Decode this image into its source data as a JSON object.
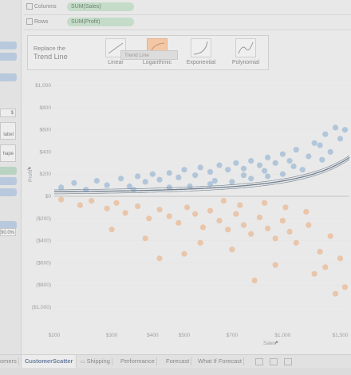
{
  "shelves": {
    "columns_label": "Columns",
    "columns_pill": "SUM(Sales)",
    "rows_label": "Rows",
    "rows_pill": "SUM(Profit)"
  },
  "left_strip": {
    "box1": "$",
    "box2_line1": "",
    "box2_line2": "label",
    "box3": "hape",
    "pct_value": "90.0%"
  },
  "trend_panel": {
    "title_line1": "Replace the",
    "title_line2": "Trend Line",
    "options": [
      {
        "label": "Linear",
        "icon": "linear-trend-icon",
        "selected": false
      },
      {
        "label": "Logarithmic",
        "icon": "logarithmic-trend-icon",
        "selected": true
      },
      {
        "label": "Exponential",
        "icon": "exponential-trend-icon",
        "selected": false
      },
      {
        "label": "Polynomial",
        "icon": "polynomial-trend-icon",
        "selected": false
      }
    ],
    "tooltip": "Trend Line"
  },
  "chart_data": {
    "type": "scatter",
    "xlabel": "Sales",
    "ylabel": "Profit",
    "x_ticks": [
      "$200",
      "$300",
      "$400",
      "$500",
      "$700",
      "$1,000",
      "$1,500"
    ],
    "x_tick_values": [
      200,
      300,
      400,
      500,
      700,
      1000,
      1500
    ],
    "y_ticks": [
      "$1,000",
      "$800",
      "$600",
      "$400",
      "$200",
      "$0",
      "($200)",
      "($400)",
      "($600)",
      "($800)",
      "($1,000)"
    ],
    "y_tick_values": [
      1000,
      800,
      600,
      400,
      200,
      0,
      -200,
      -400,
      -600,
      -800,
      -1000
    ],
    "xlim": [
      200,
      1600
    ],
    "ylim": [
      -1080,
      1080
    ],
    "x_scale": "log",
    "series": [
      {
        "name": "",
        "color": "#9fbad4",
        "points": [
          [
            210,
            80
          ],
          [
            230,
            120
          ],
          [
            250,
            60
          ],
          [
            270,
            140
          ],
          [
            290,
            100
          ],
          [
            320,
            160
          ],
          [
            340,
            90
          ],
          [
            360,
            180
          ],
          [
            380,
            130
          ],
          [
            400,
            200
          ],
          [
            420,
            150
          ],
          [
            450,
            210
          ],
          [
            480,
            170
          ],
          [
            500,
            240
          ],
          [
            540,
            190
          ],
          [
            560,
            260
          ],
          [
            600,
            220
          ],
          [
            640,
            280
          ],
          [
            680,
            240
          ],
          [
            720,
            300
          ],
          [
            760,
            250
          ],
          [
            800,
            320
          ],
          [
            850,
            280
          ],
          [
            900,
            350
          ],
          [
            950,
            300
          ],
          [
            1000,
            380
          ],
          [
            1050,
            320
          ],
          [
            1100,
            420
          ],
          [
            1200,
            360
          ],
          [
            1300,
            460
          ],
          [
            1400,
            400
          ],
          [
            1500,
            520
          ],
          [
            1550,
            600
          ],
          [
            1450,
            620
          ],
          [
            1350,
            560
          ],
          [
            1250,
            480
          ],
          [
            700,
            130
          ],
          [
            600,
            110
          ],
          [
            900,
            180
          ],
          [
            1150,
            240
          ],
          [
            350,
            60
          ],
          [
            450,
            80
          ],
          [
            800,
            160
          ],
          [
            1000,
            200
          ],
          [
            520,
            90
          ],
          [
            620,
            140
          ],
          [
            760,
            190
          ],
          [
            880,
            230
          ],
          [
            1080,
            270
          ],
          [
            1320,
            330
          ]
        ]
      },
      {
        "name": "",
        "color": "#e8b894",
        "points": [
          [
            210,
            -30
          ],
          [
            240,
            -80
          ],
          [
            260,
            -40
          ],
          [
            290,
            -110
          ],
          [
            310,
            -60
          ],
          [
            330,
            -150
          ],
          [
            360,
            -90
          ],
          [
            390,
            -200
          ],
          [
            420,
            -120
          ],
          [
            450,
            -180
          ],
          [
            480,
            -240
          ],
          [
            510,
            -100
          ],
          [
            540,
            -160
          ],
          [
            570,
            -280
          ],
          [
            600,
            -130
          ],
          [
            640,
            -220
          ],
          [
            680,
            -300
          ],
          [
            720,
            -160
          ],
          [
            760,
            -260
          ],
          [
            800,
            -340
          ],
          [
            850,
            -190
          ],
          [
            900,
            -290
          ],
          [
            950,
            -380
          ],
          [
            1000,
            -220
          ],
          [
            1050,
            -320
          ],
          [
            1100,
            -420
          ],
          [
            1200,
            -260
          ],
          [
            1300,
            -500
          ],
          [
            1400,
            -360
          ],
          [
            1500,
            -560
          ],
          [
            1450,
            -880
          ],
          [
            1350,
            -640
          ],
          [
            1250,
            -700
          ],
          [
            700,
            -480
          ],
          [
            500,
            -520
          ],
          [
            420,
            -560
          ],
          [
            950,
            -620
          ],
          [
            1550,
            -820
          ],
          [
            820,
            -760
          ],
          [
            300,
            -300
          ],
          [
            380,
            -380
          ],
          [
            560,
            -420
          ],
          [
            660,
            -40
          ],
          [
            740,
            -80
          ],
          [
            880,
            -60
          ],
          [
            1020,
            -100
          ],
          [
            1180,
            -140
          ]
        ]
      }
    ],
    "trend_type": "exponential",
    "trend_color": "#6f7f8f"
  },
  "tabs": [
    {
      "label": "omers",
      "active": false
    },
    {
      "label": "CustomerScatter",
      "active": true
    },
    {
      "label": "Shipping",
      "active": false
    },
    {
      "label": "Performance",
      "active": false
    },
    {
      "label": "Forecast",
      "active": false
    },
    {
      "label": "What If Forecast",
      "active": false
    }
  ]
}
